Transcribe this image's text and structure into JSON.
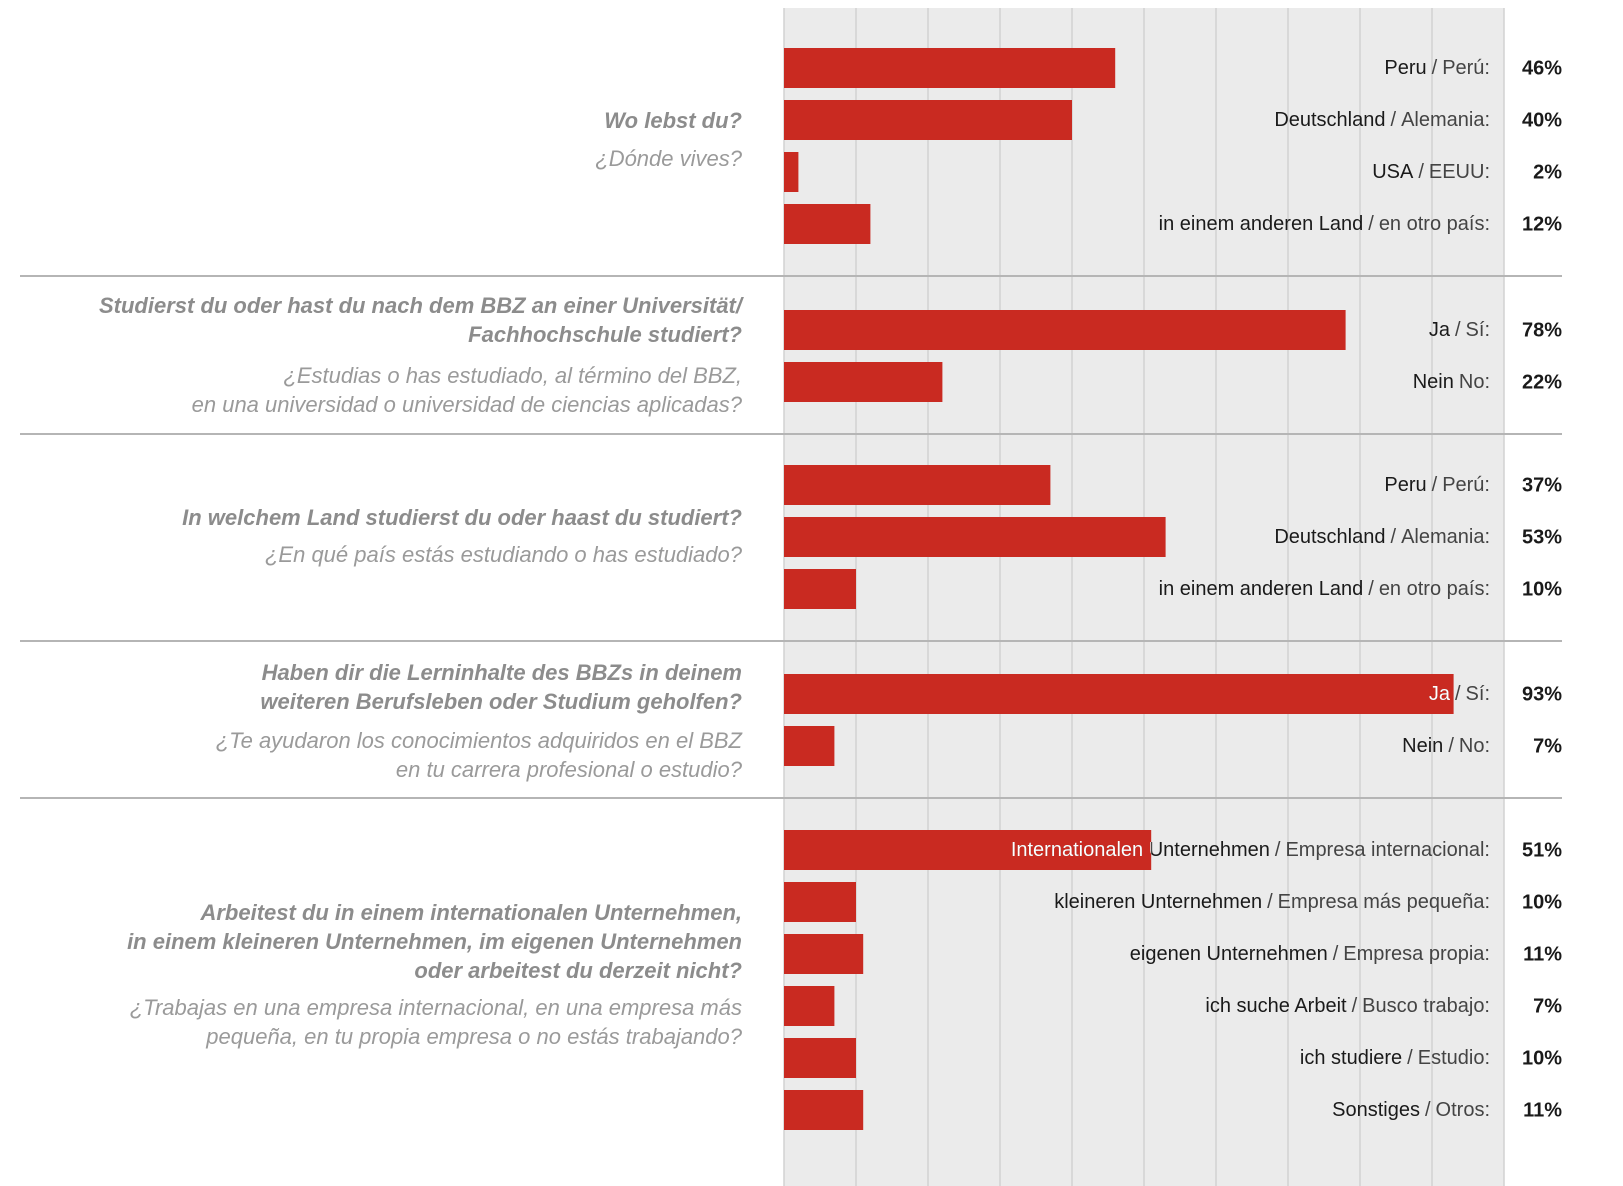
{
  "chart_data": [
    {
      "type": "bar",
      "question_de": [
        "Wo lebst du?"
      ],
      "question_es": [
        "¿Dónde vives?"
      ],
      "categories": [
        [
          "Peru",
          "/",
          "Perú:"
        ],
        [
          "Deutschland",
          "/",
          "Alemania:"
        ],
        [
          "USA",
          "/",
          "EEUU:"
        ],
        [
          "in einem anderen Land",
          "/",
          "en otro país:"
        ]
      ],
      "values": [
        46,
        40,
        2,
        12
      ],
      "value_labels": [
        "46%",
        "40%",
        "2%",
        "12%"
      ],
      "color": "#c92a21",
      "xlim": [
        0,
        100
      ],
      "xticks": [
        0,
        10,
        20,
        30,
        40,
        50,
        60,
        70,
        80,
        90,
        100
      ],
      "grid": true
    },
    {
      "type": "bar",
      "question_de": [
        "Studierst du oder hast du nach dem BBZ an einer Universität/",
        "Fachhochschule studiert?"
      ],
      "question_es": [
        "¿Estudias o has estudiado, al término del BBZ,",
        "en una universidad o universidad de ciencias aplicadas?"
      ],
      "categories": [
        [
          "Ja",
          "/",
          "Sí:"
        ],
        [
          "Nein",
          "No:"
        ]
      ],
      "values": [
        78,
        22
      ],
      "value_labels": [
        "78%",
        "22%"
      ],
      "color": "#c92a21",
      "xlim": [
        0,
        100
      ],
      "xticks": [
        0,
        10,
        20,
        30,
        40,
        50,
        60,
        70,
        80,
        90,
        100
      ],
      "grid": true
    },
    {
      "type": "bar",
      "question_de": [
        "In welchem Land studierst du oder haast du studiert?"
      ],
      "question_es": [
        "¿En qué país estás estudiando o has estudiado?"
      ],
      "categories": [
        [
          "Peru",
          "/",
          "Perú:"
        ],
        [
          "Deutschland",
          "/",
          "Alemania:"
        ],
        [
          "in einem anderen Land",
          "/",
          "en otro país:"
        ]
      ],
      "values": [
        37,
        53,
        10
      ],
      "value_labels": [
        "37%",
        "53%",
        "10%"
      ],
      "color": "#c92a21",
      "xlim": [
        0,
        100
      ],
      "xticks": [
        0,
        10,
        20,
        30,
        40,
        50,
        60,
        70,
        80,
        90,
        100
      ],
      "grid": true
    },
    {
      "type": "bar",
      "question_de": [
        "Haben dir die Lerninhalte des BBZs in deinem",
        "weiteren Berufsleben oder Studium geholfen?"
      ],
      "question_es": [
        "¿Te ayudaron los conocimientos adquiridos en el BBZ",
        "en tu carrera profesional o estudio?"
      ],
      "categories": [
        [
          "Ja",
          "/",
          "Sí:"
        ],
        [
          "Nein",
          "/",
          "No:"
        ]
      ],
      "values": [
        93,
        7
      ],
      "value_labels": [
        "93%",
        "7%"
      ],
      "color": "#c92a21",
      "xlim": [
        0,
        100
      ],
      "xticks": [
        0,
        10,
        20,
        30,
        40,
        50,
        60,
        70,
        80,
        90,
        100
      ],
      "grid": true
    },
    {
      "type": "bar",
      "question_de": [
        "Arbeitest du in einem internationalen Unternehmen,",
        "in einem kleineren Unternehmen, im eigenen Unternehmen",
        "oder arbeitest du derzeit nicht?"
      ],
      "question_es": [
        "¿Trabajas en una empresa internacional, en una empresa más",
        "pequeña, en tu propia empresa o no estás trabajando?"
      ],
      "categories": [
        [
          "Internationalen Unternehmen",
          "/",
          "Empresa internacional:"
        ],
        [
          "kleineren Unternehmen",
          "/",
          "Empresa más pequeña:"
        ],
        [
          "eigenen Unternehmen",
          "/",
          "Empresa propia:"
        ],
        [
          "ich suche Arbeit",
          "/",
          "Busco trabajo:"
        ],
        [
          "ich studiere",
          "/",
          "Estudio:"
        ],
        [
          "Sonstiges",
          "/",
          "Otros:"
        ]
      ],
      "values": [
        51,
        10,
        11,
        7,
        10,
        11
      ],
      "value_labels": [
        "51%",
        "10%",
        "11%",
        "7%",
        "10%",
        "11%"
      ],
      "color": "#c92a21",
      "xlim": [
        0,
        100
      ],
      "xticks": [
        0,
        10,
        20,
        30,
        40,
        50,
        60,
        70,
        80,
        90,
        100
      ],
      "grid": true
    }
  ]
}
